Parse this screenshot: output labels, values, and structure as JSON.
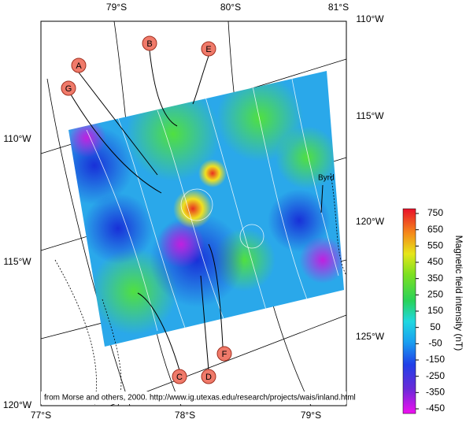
{
  "axes": {
    "top": [
      "79°S",
      "80°S",
      "81°S"
    ],
    "bottom": [
      "77°S",
      "78°S",
      "79°S"
    ],
    "left": [
      "110°W",
      "115°W",
      "120°W"
    ],
    "right": [
      "110°W",
      "115°W",
      "120°W",
      "125°W"
    ]
  },
  "markers": [
    "A",
    "B",
    "C",
    "D",
    "E",
    "F",
    "G"
  ],
  "place": "Byrd",
  "colorbar": {
    "label": "Magnetic field intensity (nT)",
    "ticks": [
      750,
      650,
      550,
      450,
      350,
      250,
      150,
      50,
      -50,
      -150,
      -250,
      -350,
      -450
    ]
  },
  "credit": "from Morse and others, 2000. http://www.ig.utexas.edu/research/projects/wais/inland.html"
}
